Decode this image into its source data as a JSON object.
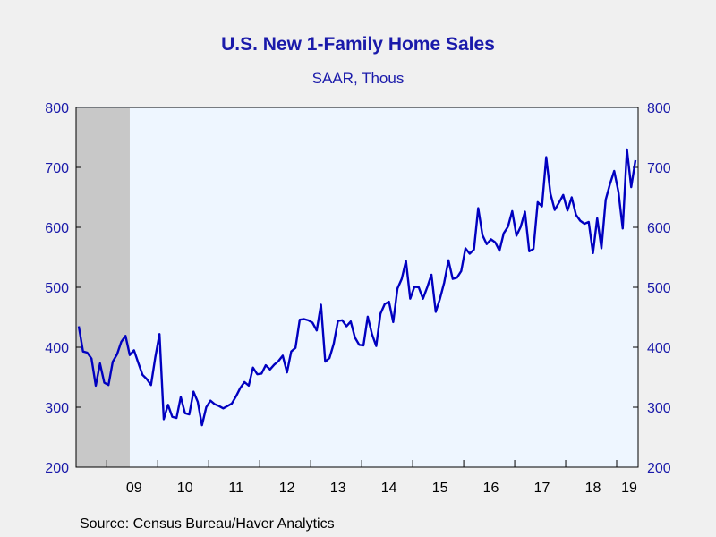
{
  "header": {
    "title": "U.S. New 1-Family Home Sales",
    "subtitle": "SAAR, Thous"
  },
  "footer": {
    "source": "Source:  Census Bureau/Haver Analytics"
  },
  "colors": {
    "line": "#0000c0",
    "text": "#1a1aaa",
    "plot_background": "#eef6ff",
    "recession_shade": "#c8c8c8",
    "page_background": "#f0f0f0"
  },
  "chart_data": {
    "type": "line",
    "title": "U.S. New 1-Family Home Sales",
    "subtitle": "SAAR, Thous",
    "frequency": "monthly",
    "start": "2008-06",
    "ylim": [
      200,
      800
    ],
    "yticks": [
      200,
      300,
      400,
      500,
      600,
      700,
      800
    ],
    "y_axis_both_sides": true,
    "x_tick_labels": [
      "09",
      "10",
      "11",
      "12",
      "13",
      "14",
      "15",
      "16",
      "17",
      "18",
      "19"
    ],
    "shaded_period": {
      "from": "2008-06",
      "to": "2009-06",
      "label": ""
    },
    "grid": false,
    "series": [
      {
        "name": "",
        "values": [
          435,
          393,
          391,
          381,
          336,
          373,
          341,
          337,
          376,
          388,
          409,
          419,
          387,
          395,
          374,
          354,
          347,
          337,
          383,
          422,
          280,
          304,
          284,
          282,
          317,
          290,
          288,
          326,
          309,
          270,
          300,
          311,
          305,
          302,
          298,
          302,
          306,
          318,
          332,
          342,
          336,
          366,
          355,
          356,
          370,
          363,
          371,
          377,
          386,
          358,
          393,
          399,
          446,
          447,
          445,
          441,
          428,
          471,
          376,
          382,
          406,
          444,
          445,
          435,
          443,
          416,
          404,
          403,
          451,
          422,
          402,
          456,
          472,
          476,
          442,
          498,
          514,
          544,
          481,
          501,
          500,
          481,
          500,
          521,
          459,
          481,
          508,
          545,
          514,
          516,
          527,
          565,
          556,
          563,
          632,
          587,
          572,
          580,
          575,
          561,
          590,
          601,
          627,
          586,
          601,
          626,
          560,
          564,
          642,
          635,
          717,
          656,
          629,
          641,
          654,
          628,
          650,
          621,
          611,
          606,
          609,
          557,
          615,
          565,
          646,
          672,
          694,
          659,
          598,
          730,
          667,
          712
        ]
      }
    ]
  }
}
